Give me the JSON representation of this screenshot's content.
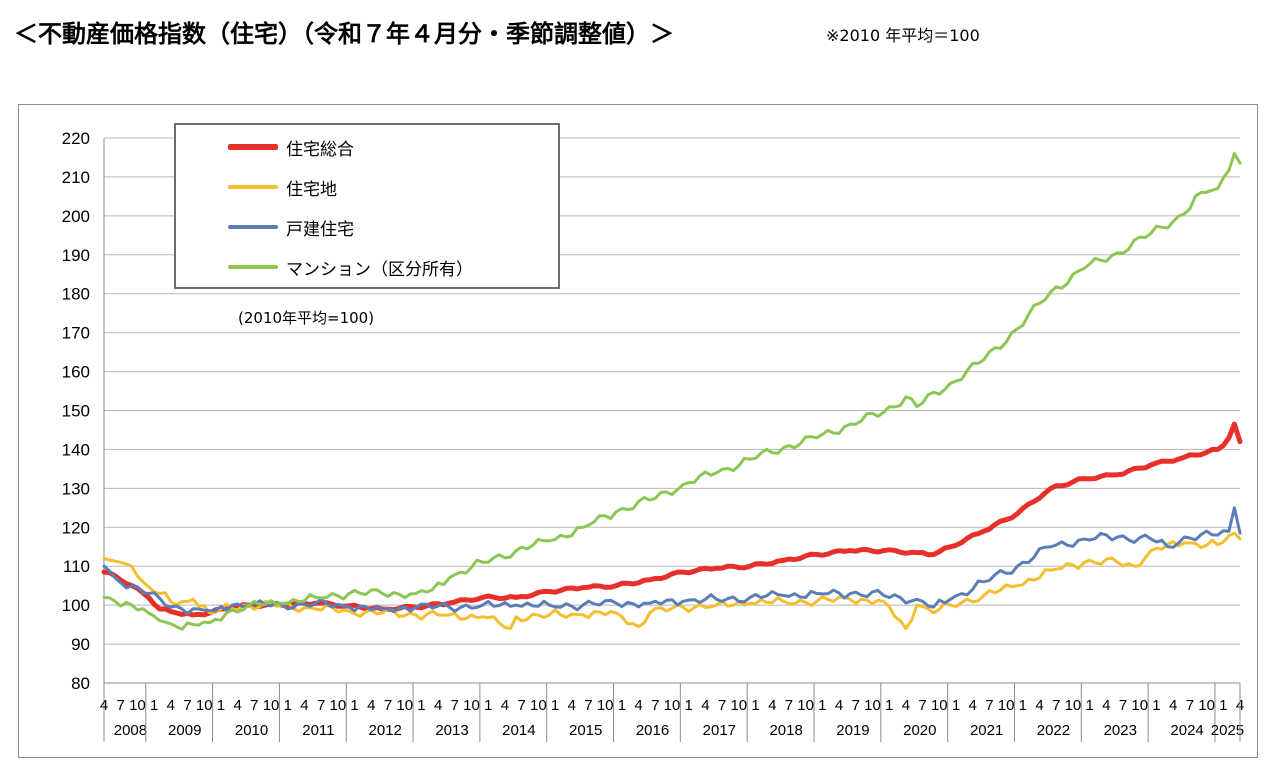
{
  "header": {
    "title": "＜不動産価格指数（住宅）（令和７年４月分・季節調整値）＞",
    "note": "※2010 年平均＝100"
  },
  "chart_data": {
    "type": "line",
    "title": "",
    "xlabel": "",
    "ylabel": "",
    "note": "(2010年平均=100)",
    "ylim": [
      80,
      220
    ],
    "yticks": [
      80,
      90,
      100,
      110,
      120,
      130,
      140,
      150,
      160,
      170,
      180,
      190,
      200,
      210,
      220
    ],
    "grid": true,
    "legend_position": "top-left",
    "x_range": {
      "start": "2008-04",
      "end": "2025-04",
      "frequency": "monthly"
    },
    "month_tick_labels": [
      "4",
      "7",
      "10",
      "1"
    ],
    "year_labels": [
      "2008",
      "2009",
      "2010",
      "2011",
      "2012",
      "2013",
      "2014",
      "2015",
      "2016",
      "2017",
      "2018",
      "2019",
      "2020",
      "2021",
      "2022",
      "2023",
      "2024",
      "2025"
    ],
    "series": [
      {
        "name": "住宅総合",
        "color": "#E8302A",
        "width": 5,
        "anchors": [
          [
            "2008-04",
            108.5
          ],
          [
            "2008-06",
            107.5
          ],
          [
            "2008-09",
            105
          ],
          [
            "2008-12",
            102
          ],
          [
            "2009-02",
            99
          ],
          [
            "2009-05",
            98
          ],
          [
            "2009-08",
            97.5
          ],
          [
            "2009-11",
            98
          ],
          [
            "2010-01",
            99
          ],
          [
            "2010-06",
            100
          ],
          [
            "2010-12",
            100
          ],
          [
            "2011-06",
            100.5
          ],
          [
            "2011-12",
            99.8
          ],
          [
            "2012-06",
            99
          ],
          [
            "2012-12",
            99.5
          ],
          [
            "2013-06",
            100.5
          ],
          [
            "2013-12",
            102
          ],
          [
            "2014-06",
            102
          ],
          [
            "2014-12",
            103.5
          ],
          [
            "2015-06",
            104.5
          ],
          [
            "2015-12",
            105
          ],
          [
            "2016-06",
            106.5
          ],
          [
            "2016-12",
            108.5
          ],
          [
            "2017-06",
            109.5
          ],
          [
            "2017-12",
            110
          ],
          [
            "2018-06",
            111.5
          ],
          [
            "2018-12",
            113
          ],
          [
            "2019-06",
            114
          ],
          [
            "2019-12",
            114
          ],
          [
            "2020-06",
            113.5
          ],
          [
            "2020-09",
            113
          ],
          [
            "2020-12",
            115
          ],
          [
            "2021-06",
            119
          ],
          [
            "2021-12",
            123.5
          ],
          [
            "2022-06",
            130
          ],
          [
            "2022-12",
            132.5
          ],
          [
            "2023-06",
            133.5
          ],
          [
            "2023-12",
            136
          ],
          [
            "2024-06",
            138
          ],
          [
            "2024-12",
            140
          ],
          [
            "2025-01",
            141
          ],
          [
            "2025-02",
            143
          ],
          [
            "2025-03",
            146.5
          ],
          [
            "2025-04",
            142
          ]
        ]
      },
      {
        "name": "住宅地",
        "color": "#F5BE2E",
        "width": 3,
        "anchors": [
          [
            "2008-04",
            112
          ],
          [
            "2008-07",
            111
          ],
          [
            "2008-09",
            110
          ],
          [
            "2008-11",
            106
          ],
          [
            "2009-02",
            103
          ],
          [
            "2009-05",
            100
          ],
          [
            "2009-08",
            101.5
          ],
          [
            "2009-11",
            98
          ],
          [
            "2010-01",
            99
          ],
          [
            "2010-06",
            100
          ],
          [
            "2010-12",
            100
          ],
          [
            "2011-06",
            99
          ],
          [
            "2011-12",
            98.5
          ],
          [
            "2012-06",
            98
          ],
          [
            "2012-12",
            97.5
          ],
          [
            "2013-06",
            97.5
          ],
          [
            "2013-12",
            97
          ],
          [
            "2014-05",
            94
          ],
          [
            "2014-06",
            97
          ],
          [
            "2014-12",
            97.5
          ],
          [
            "2015-06",
            97.5
          ],
          [
            "2015-12",
            98
          ],
          [
            "2016-04",
            94.5
          ],
          [
            "2016-06",
            98
          ],
          [
            "2016-12",
            99.5
          ],
          [
            "2017-06",
            100
          ],
          [
            "2017-12",
            100.5
          ],
          [
            "2018-06",
            101
          ],
          [
            "2018-12",
            101
          ],
          [
            "2019-06",
            101.5
          ],
          [
            "2019-12",
            101
          ],
          [
            "2020-04",
            94
          ],
          [
            "2020-06",
            100
          ],
          [
            "2020-09",
            98
          ],
          [
            "2020-12",
            100
          ],
          [
            "2021-06",
            102.5
          ],
          [
            "2021-12",
            105
          ],
          [
            "2022-06",
            109
          ],
          [
            "2022-12",
            111
          ],
          [
            "2023-06",
            111
          ],
          [
            "2023-09",
            110
          ],
          [
            "2023-12",
            114
          ],
          [
            "2024-06",
            116
          ],
          [
            "2024-12",
            115.5
          ],
          [
            "2025-03",
            118.5
          ],
          [
            "2025-04",
            117
          ]
        ]
      },
      {
        "name": "戸建住宅",
        "color": "#5B7DB8",
        "width": 3,
        "anchors": [
          [
            "2008-04",
            110
          ],
          [
            "2008-06",
            107
          ],
          [
            "2008-12",
            103
          ],
          [
            "2009-03",
            100
          ],
          [
            "2009-06",
            99
          ],
          [
            "2009-09",
            99
          ],
          [
            "2009-12",
            98.5
          ],
          [
            "2010-03",
            100
          ],
          [
            "2010-06",
            100
          ],
          [
            "2010-12",
            100
          ],
          [
            "2011-06",
            100.5
          ],
          [
            "2011-12",
            99.5
          ],
          [
            "2012-06",
            99
          ],
          [
            "2012-12",
            99.5
          ],
          [
            "2013-06",
            99.5
          ],
          [
            "2013-12",
            100
          ],
          [
            "2014-06",
            100
          ],
          [
            "2014-12",
            100
          ],
          [
            "2015-06",
            100
          ],
          [
            "2015-12",
            100.5
          ],
          [
            "2016-06",
            100.5
          ],
          [
            "2016-12",
            101
          ],
          [
            "2017-06",
            101.5
          ],
          [
            "2017-12",
            102
          ],
          [
            "2018-06",
            102.5
          ],
          [
            "2018-12",
            103
          ],
          [
            "2019-06",
            103
          ],
          [
            "2019-12",
            102.5
          ],
          [
            "2020-06",
            101.5
          ],
          [
            "2020-09",
            99.5
          ],
          [
            "2020-12",
            101.5
          ],
          [
            "2021-06",
            106
          ],
          [
            "2021-12",
            110
          ],
          [
            "2022-06",
            115
          ],
          [
            "2022-12",
            117
          ],
          [
            "2023-06",
            117.5
          ],
          [
            "2023-12",
            117
          ],
          [
            "2024-03",
            115
          ],
          [
            "2024-06",
            117.5
          ],
          [
            "2024-12",
            118
          ],
          [
            "2025-02",
            119
          ],
          [
            "2025-03",
            125
          ],
          [
            "2025-04",
            118.5
          ]
        ]
      },
      {
        "name": "マンション（区分所有）",
        "color": "#8DC654",
        "width": 3,
        "anchors": [
          [
            "2008-04",
            102
          ],
          [
            "2008-06",
            101
          ],
          [
            "2008-09",
            100
          ],
          [
            "2008-12",
            98
          ],
          [
            "2009-02",
            96
          ],
          [
            "2009-05",
            94.5
          ],
          [
            "2009-08",
            95
          ],
          [
            "2009-11",
            95.5
          ],
          [
            "2010-02",
            98
          ],
          [
            "2010-06",
            100
          ],
          [
            "2010-12",
            100.5
          ],
          [
            "2011-06",
            102
          ],
          [
            "2011-12",
            103
          ],
          [
            "2012-06",
            103
          ],
          [
            "2012-12",
            103
          ],
          [
            "2013-03",
            104
          ],
          [
            "2013-06",
            107
          ],
          [
            "2013-12",
            111
          ],
          [
            "2014-06",
            114
          ],
          [
            "2014-12",
            116.5
          ],
          [
            "2015-06",
            120
          ],
          [
            "2015-12",
            124
          ],
          [
            "2016-06",
            127
          ],
          [
            "2016-12",
            131
          ],
          [
            "2017-06",
            134
          ],
          [
            "2017-12",
            137.5
          ],
          [
            "2018-06",
            140.5
          ],
          [
            "2018-12",
            143
          ],
          [
            "2019-06",
            146.5
          ],
          [
            "2019-12",
            149.5
          ],
          [
            "2020-04",
            153.5
          ],
          [
            "2020-06",
            151
          ],
          [
            "2020-12",
            157
          ],
          [
            "2021-06",
            163
          ],
          [
            "2021-12",
            171
          ],
          [
            "2022-06",
            180.5
          ],
          [
            "2022-12",
            186.5
          ],
          [
            "2023-06",
            190.5
          ],
          [
            "2023-12",
            195.5
          ],
          [
            "2024-06",
            200.5
          ],
          [
            "2024-09",
            206
          ],
          [
            "2024-12",
            207
          ],
          [
            "2025-03",
            216
          ],
          [
            "2025-04",
            213.5
          ]
        ]
      }
    ]
  }
}
